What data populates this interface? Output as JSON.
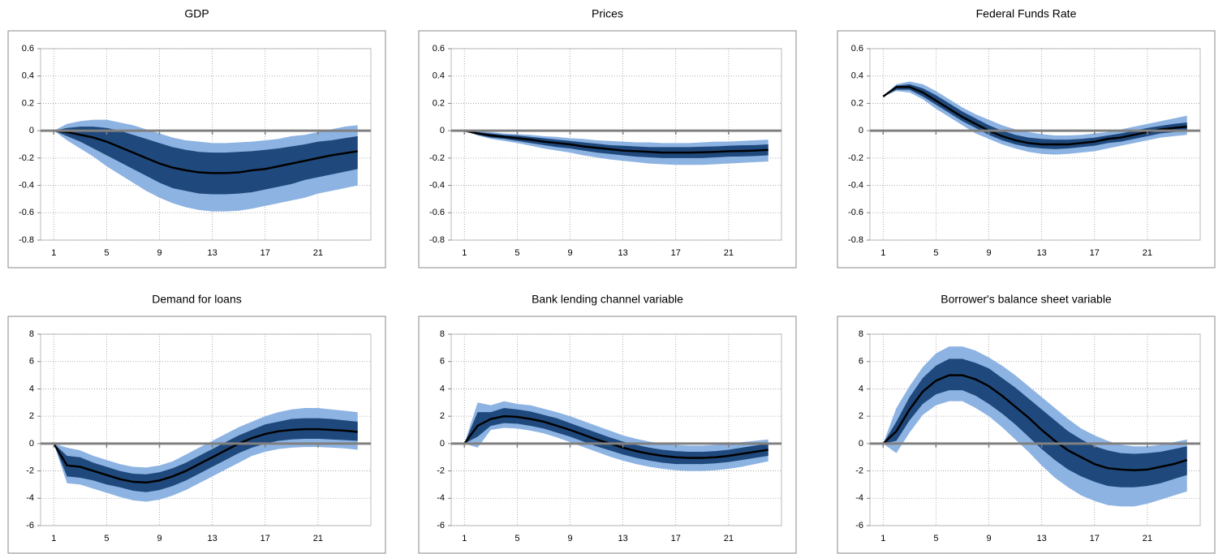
{
  "chart_data": [
    {
      "type": "line",
      "title": "GDP",
      "x": [
        1,
        2,
        3,
        4,
        5,
        6,
        7,
        8,
        9,
        10,
        11,
        12,
        13,
        14,
        15,
        16,
        17,
        18,
        19,
        20,
        21,
        22,
        23,
        24
      ],
      "color": "#000000",
      "values": [
        0,
        -0.01,
        -0.03,
        -0.05,
        -0.08,
        -0.12,
        -0.16,
        -0.2,
        -0.24,
        -0.27,
        -0.29,
        -0.305,
        -0.31,
        -0.31,
        -0.305,
        -0.29,
        -0.28,
        -0.26,
        -0.24,
        -0.22,
        -0.2,
        -0.18,
        -0.165,
        -0.15
      ],
      "bands": [
        {
          "color": "#8db3e2",
          "upper": [
            0,
            0.05,
            0.07,
            0.08,
            0.08,
            0.06,
            0.04,
            0.01,
            -0.02,
            -0.05,
            -0.07,
            -0.08,
            -0.09,
            -0.09,
            -0.085,
            -0.08,
            -0.07,
            -0.06,
            -0.04,
            -0.03,
            -0.01,
            0.01,
            0.03,
            0.04
          ],
          "lower": [
            0,
            -0.07,
            -0.13,
            -0.19,
            -0.26,
            -0.32,
            -0.38,
            -0.44,
            -0.49,
            -0.53,
            -0.56,
            -0.58,
            -0.59,
            -0.59,
            -0.585,
            -0.57,
            -0.55,
            -0.53,
            -0.51,
            -0.49,
            -0.46,
            -0.44,
            -0.42,
            -0.4
          ]
        },
        {
          "color": "#1f497d",
          "upper": [
            0,
            0.02,
            0.03,
            0.03,
            0.02,
            0,
            -0.03,
            -0.06,
            -0.09,
            -0.12,
            -0.14,
            -0.155,
            -0.16,
            -0.16,
            -0.155,
            -0.15,
            -0.14,
            -0.13,
            -0.115,
            -0.1,
            -0.08,
            -0.07,
            -0.055,
            -0.04
          ],
          "lower": [
            0,
            -0.04,
            -0.08,
            -0.13,
            -0.18,
            -0.23,
            -0.28,
            -0.33,
            -0.38,
            -0.42,
            -0.44,
            -0.46,
            -0.465,
            -0.465,
            -0.46,
            -0.45,
            -0.43,
            -0.41,
            -0.39,
            -0.36,
            -0.34,
            -0.32,
            -0.3,
            -0.28
          ]
        }
      ],
      "xlim": [
        0,
        25
      ],
      "xticks": [
        1,
        5,
        9,
        13,
        17,
        21
      ],
      "ylim": [
        -0.8,
        0.6
      ],
      "yticks": [
        -0.8,
        -0.6,
        -0.4,
        -0.2,
        0,
        0.2,
        0.4,
        0.6
      ],
      "grid": true
    },
    {
      "type": "line",
      "title": "Prices",
      "x": [
        1,
        2,
        3,
        4,
        5,
        6,
        7,
        8,
        9,
        10,
        11,
        12,
        13,
        14,
        15,
        16,
        17,
        18,
        19,
        20,
        21,
        22,
        23,
        24
      ],
      "color": "#000000",
      "values": [
        0,
        -0.02,
        -0.035,
        -0.045,
        -0.055,
        -0.065,
        -0.08,
        -0.09,
        -0.1,
        -0.115,
        -0.125,
        -0.135,
        -0.145,
        -0.15,
        -0.155,
        -0.16,
        -0.16,
        -0.16,
        -0.158,
        -0.155,
        -0.15,
        -0.148,
        -0.145,
        -0.14
      ],
      "bands": [
        {
          "color": "#8db3e2",
          "upper": [
            0,
            -0.005,
            -0.01,
            -0.02,
            -0.025,
            -0.03,
            -0.04,
            -0.045,
            -0.055,
            -0.06,
            -0.07,
            -0.075,
            -0.08,
            -0.085,
            -0.085,
            -0.09,
            -0.09,
            -0.09,
            -0.085,
            -0.08,
            -0.08,
            -0.075,
            -0.07,
            -0.065
          ],
          "lower": [
            0,
            -0.035,
            -0.06,
            -0.075,
            -0.09,
            -0.11,
            -0.13,
            -0.145,
            -0.16,
            -0.18,
            -0.195,
            -0.21,
            -0.22,
            -0.23,
            -0.24,
            -0.245,
            -0.25,
            -0.25,
            -0.25,
            -0.245,
            -0.24,
            -0.235,
            -0.23,
            -0.225
          ]
        },
        {
          "color": "#1f497d",
          "upper": [
            0,
            -0.01,
            -0.02,
            -0.03,
            -0.035,
            -0.045,
            -0.055,
            -0.065,
            -0.075,
            -0.085,
            -0.095,
            -0.105,
            -0.11,
            -0.115,
            -0.12,
            -0.12,
            -0.12,
            -0.12,
            -0.117,
            -0.115,
            -0.11,
            -0.107,
            -0.105,
            -0.1
          ],
          "lower": [
            0,
            -0.03,
            -0.05,
            -0.06,
            -0.075,
            -0.09,
            -0.105,
            -0.12,
            -0.13,
            -0.145,
            -0.16,
            -0.17,
            -0.18,
            -0.19,
            -0.195,
            -0.2,
            -0.2,
            -0.2,
            -0.2,
            -0.195,
            -0.19,
            -0.188,
            -0.185,
            -0.18
          ]
        }
      ],
      "xlim": [
        0,
        25
      ],
      "xticks": [
        1,
        5,
        9,
        13,
        17,
        21
      ],
      "ylim": [
        -0.8,
        0.6
      ],
      "yticks": [
        -0.8,
        -0.6,
        -0.4,
        -0.2,
        0,
        0.2,
        0.4,
        0.6
      ],
      "grid": true
    },
    {
      "type": "line",
      "title": "Federal Funds Rate",
      "x": [
        1,
        2,
        3,
        4,
        5,
        6,
        7,
        8,
        9,
        10,
        11,
        12,
        13,
        14,
        15,
        16,
        17,
        18,
        19,
        20,
        21,
        22,
        23,
        24
      ],
      "color": "#000000",
      "values": [
        0.25,
        0.32,
        0.32,
        0.28,
        0.22,
        0.16,
        0.1,
        0.05,
        0,
        -0.04,
        -0.07,
        -0.09,
        -0.1,
        -0.1,
        -0.1,
        -0.09,
        -0.08,
        -0.06,
        -0.05,
        -0.03,
        -0.01,
        0.01,
        0.02,
        0.03
      ],
      "bands": [
        {
          "color": "#8db3e2",
          "upper": [
            0.25,
            0.34,
            0.36,
            0.34,
            0.29,
            0.23,
            0.17,
            0.12,
            0.08,
            0.04,
            0.01,
            -0.01,
            -0.025,
            -0.035,
            -0.035,
            -0.03,
            -0.02,
            -0.01,
            0.01,
            0.03,
            0.05,
            0.07,
            0.09,
            0.11
          ],
          "lower": [
            0.25,
            0.29,
            0.28,
            0.23,
            0.16,
            0.1,
            0.04,
            -0.02,
            -0.06,
            -0.1,
            -0.13,
            -0.155,
            -0.17,
            -0.175,
            -0.17,
            -0.16,
            -0.15,
            -0.13,
            -0.11,
            -0.09,
            -0.07,
            -0.05,
            -0.04,
            -0.03
          ]
        },
        {
          "color": "#1f497d",
          "upper": [
            0.25,
            0.33,
            0.34,
            0.31,
            0.26,
            0.2,
            0.14,
            0.09,
            0.04,
            0,
            -0.03,
            -0.05,
            -0.06,
            -0.065,
            -0.065,
            -0.06,
            -0.05,
            -0.035,
            -0.02,
            0,
            0.02,
            0.035,
            0.05,
            0.06
          ],
          "lower": [
            0.25,
            0.3,
            0.3,
            0.25,
            0.19,
            0.13,
            0.07,
            0.02,
            -0.03,
            -0.07,
            -0.1,
            -0.12,
            -0.13,
            -0.135,
            -0.13,
            -0.12,
            -0.11,
            -0.09,
            -0.08,
            -0.06,
            -0.04,
            -0.02,
            -0.01,
            0
          ]
        }
      ],
      "xlim": [
        0,
        25
      ],
      "xticks": [
        1,
        5,
        9,
        13,
        17,
        21
      ],
      "ylim": [
        -0.8,
        0.6
      ],
      "yticks": [
        -0.8,
        -0.6,
        -0.4,
        -0.2,
        0,
        0.2,
        0.4,
        0.6
      ],
      "grid": true
    },
    {
      "type": "line",
      "title": "Demand for loans",
      "x": [
        1,
        2,
        3,
        4,
        5,
        6,
        7,
        8,
        9,
        10,
        11,
        12,
        13,
        14,
        15,
        16,
        17,
        18,
        19,
        20,
        21,
        22,
        23,
        24
      ],
      "color": "#000000",
      "values": [
        0,
        -1.6,
        -1.7,
        -2,
        -2.3,
        -2.6,
        -2.8,
        -2.85,
        -2.7,
        -2.4,
        -2,
        -1.5,
        -1,
        -0.5,
        0,
        0.4,
        0.7,
        0.9,
        1,
        1.05,
        1.05,
        1,
        0.95,
        0.85
      ],
      "bands": [
        {
          "color": "#8db3e2",
          "upper": [
            0,
            -0.3,
            -0.5,
            -0.9,
            -1.2,
            -1.5,
            -1.7,
            -1.75,
            -1.6,
            -1.3,
            -0.8,
            -0.3,
            0.2,
            0.7,
            1.2,
            1.6,
            2,
            2.3,
            2.5,
            2.6,
            2.6,
            2.5,
            2.4,
            2.3
          ],
          "lower": [
            0,
            -2.9,
            -3,
            -3.3,
            -3.6,
            -3.9,
            -4.15,
            -4.25,
            -4.1,
            -3.8,
            -3.4,
            -2.9,
            -2.4,
            -1.9,
            -1.4,
            -0.9,
            -0.6,
            -0.4,
            -0.3,
            -0.25,
            -0.25,
            -0.3,
            -0.35,
            -0.45
          ]
        },
        {
          "color": "#1f497d",
          "upper": [
            0,
            -0.9,
            -1,
            -1.4,
            -1.7,
            -2,
            -2.2,
            -2.25,
            -2.1,
            -1.8,
            -1.4,
            -0.9,
            -0.4,
            0.1,
            0.6,
            1,
            1.4,
            1.6,
            1.8,
            1.85,
            1.85,
            1.8,
            1.7,
            1.6
          ],
          "lower": [
            0,
            -2.4,
            -2.5,
            -2.7,
            -3,
            -3.2,
            -3.45,
            -3.55,
            -3.4,
            -3.1,
            -2.7,
            -2.2,
            -1.7,
            -1.2,
            -0.7,
            -0.3,
            0,
            0.2,
            0.3,
            0.35,
            0.35,
            0.3,
            0.25,
            0.2
          ]
        }
      ],
      "xlim": [
        0,
        25
      ],
      "xticks": [
        1,
        5,
        9,
        13,
        17,
        21
      ],
      "ylim": [
        -6,
        8
      ],
      "yticks": [
        -6,
        -4,
        -2,
        0,
        2,
        4,
        6,
        8
      ],
      "grid": true
    },
    {
      "type": "line",
      "title": "Bank lending channel variable",
      "x": [
        1,
        2,
        3,
        4,
        5,
        6,
        7,
        8,
        9,
        10,
        11,
        12,
        13,
        14,
        15,
        16,
        17,
        18,
        19,
        20,
        21,
        22,
        23,
        24
      ],
      "color": "#000000",
      "values": [
        0,
        1.3,
        1.8,
        2,
        1.95,
        1.8,
        1.6,
        1.3,
        1,
        0.65,
        0.3,
        0,
        -0.3,
        -0.55,
        -0.75,
        -0.9,
        -1,
        -1.05,
        -1.05,
        -1,
        -0.9,
        -0.75,
        -0.6,
        -0.45
      ],
      "bands": [
        {
          "color": "#8db3e2",
          "upper": [
            0,
            3,
            2.8,
            3.1,
            2.9,
            2.8,
            2.55,
            2.3,
            2,
            1.65,
            1.3,
            0.95,
            0.6,
            0.35,
            0.15,
            0,
            -0.1,
            -0.15,
            -0.15,
            -0.1,
            0,
            0.1,
            0.2,
            0.3
          ],
          "lower": [
            0,
            -0.3,
            1,
            1.15,
            1.1,
            0.95,
            0.75,
            0.45,
            0.1,
            -0.25,
            -0.6,
            -0.95,
            -1.25,
            -1.5,
            -1.7,
            -1.85,
            -1.95,
            -2,
            -2,
            -1.95,
            -1.85,
            -1.7,
            -1.5,
            -1.3
          ]
        },
        {
          "color": "#1f497d",
          "upper": [
            0,
            2.3,
            2.3,
            2.6,
            2.5,
            2.35,
            2.1,
            1.85,
            1.5,
            1.15,
            0.8,
            0.45,
            0.15,
            -0.1,
            -0.3,
            -0.45,
            -0.55,
            -0.6,
            -0.6,
            -0.55,
            -0.45,
            -0.3,
            -0.15,
            0
          ],
          "lower": [
            0,
            0.5,
            1.3,
            1.5,
            1.45,
            1.3,
            1.1,
            0.8,
            0.5,
            0.15,
            -0.2,
            -0.5,
            -0.8,
            -1.05,
            -1.25,
            -1.4,
            -1.5,
            -1.5,
            -1.5,
            -1.45,
            -1.35,
            -1.2,
            -1.05,
            -0.9
          ]
        }
      ],
      "xlim": [
        0,
        25
      ],
      "xticks": [
        1,
        5,
        9,
        13,
        17,
        21
      ],
      "ylim": [
        -6,
        8
      ],
      "yticks": [
        -6,
        -4,
        -2,
        0,
        2,
        4,
        6,
        8
      ],
      "grid": true
    },
    {
      "type": "line",
      "title": "Borrower's balance sheet variable",
      "x": [
        1,
        2,
        3,
        4,
        5,
        6,
        7,
        8,
        9,
        10,
        11,
        12,
        13,
        14,
        15,
        16,
        17,
        18,
        19,
        20,
        21,
        22,
        23,
        24
      ],
      "color": "#000000",
      "values": [
        0,
        0.9,
        2.5,
        3.8,
        4.6,
        5,
        5,
        4.7,
        4.2,
        3.5,
        2.7,
        1.9,
        1,
        0.2,
        -0.5,
        -1,
        -1.5,
        -1.8,
        -1.9,
        -1.95,
        -1.9,
        -1.7,
        -1.5,
        -1.2
      ],
      "bands": [
        {
          "color": "#8db3e2",
          "upper": [
            0,
            2.6,
            4.2,
            5.6,
            6.6,
            7.1,
            7.1,
            6.8,
            6.3,
            5.7,
            5,
            4.2,
            3.4,
            2.6,
            1.8,
            1.1,
            0.6,
            0.2,
            -0.1,
            -0.2,
            -0.2,
            -0.1,
            0.1,
            0.3
          ],
          "lower": [
            0,
            -0.7,
            0.8,
            2.1,
            2.8,
            3.1,
            3.1,
            2.6,
            2,
            1.2,
            0.3,
            -0.6,
            -1.6,
            -2.5,
            -3.2,
            -3.8,
            -4.2,
            -4.5,
            -4.6,
            -4.6,
            -4.4,
            -4.1,
            -3.8,
            -3.5
          ]
        },
        {
          "color": "#1f497d",
          "upper": [
            0,
            1.6,
            3.4,
            4.8,
            5.7,
            6.2,
            6.2,
            5.9,
            5.5,
            4.8,
            4.1,
            3.3,
            2.5,
            1.7,
            0.9,
            0.3,
            -0.2,
            -0.5,
            -0.7,
            -0.75,
            -0.7,
            -0.6,
            -0.4,
            -0.2
          ],
          "lower": [
            0,
            0.2,
            1.7,
            2.9,
            3.6,
            3.9,
            3.9,
            3.5,
            2.9,
            2.2,
            1.4,
            0.5,
            -0.4,
            -1.2,
            -1.9,
            -2.4,
            -2.8,
            -3.1,
            -3.2,
            -3.2,
            -3.1,
            -2.9,
            -2.6,
            -2.3
          ]
        }
      ],
      "xlim": [
        0,
        25
      ],
      "xticks": [
        1,
        5,
        9,
        13,
        17,
        21
      ],
      "ylim": [
        -6,
        8
      ],
      "yticks": [
        -6,
        -4,
        -2,
        0,
        2,
        4,
        6,
        8
      ],
      "grid": true
    }
  ]
}
